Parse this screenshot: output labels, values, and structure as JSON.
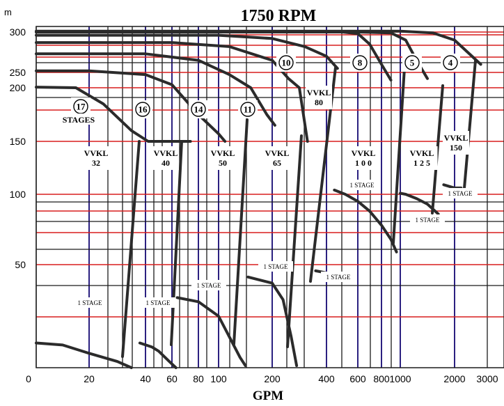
{
  "chart_data": {
    "type": "line",
    "title": "1750 RPM",
    "xlabel": "GPM",
    "ylabel": "m",
    "x_ticks": [
      {
        "v": 0,
        "label": "0"
      },
      {
        "v": 20,
        "label": "20"
      },
      {
        "v": 40,
        "label": "40"
      },
      {
        "v": 60,
        "label": "60"
      },
      {
        "v": 80,
        "label": "80"
      },
      {
        "v": 100,
        "label": "100"
      },
      {
        "v": 200,
        "label": "200"
      },
      {
        "v": 400,
        "label": "400"
      },
      {
        "v": 600,
        "label": "600"
      },
      {
        "v": 800,
        "label": "800"
      },
      {
        "v": 1000,
        "label": "1000"
      },
      {
        "v": 2000,
        "label": "2000"
      },
      {
        "v": 3000,
        "label": "3000"
      }
    ],
    "y_ticks": [
      {
        "v": 300,
        "label": "300"
      },
      {
        "v": 250,
        "label": "250"
      },
      {
        "v": 200,
        "label": "200"
      },
      {
        "v": 150,
        "label": "150"
      },
      {
        "v": 100,
        "label": "100"
      },
      {
        "v": 50,
        "label": "50"
      }
    ],
    "grid": true,
    "series": [
      {
        "points": [
          [
            0,
            202
          ],
          [
            15,
            200
          ],
          [
            25,
            185
          ],
          [
            35,
            160
          ],
          [
            42,
            150
          ],
          [
            60,
            150
          ],
          [
            74,
            150
          ]
        ]
      },
      {
        "points": [
          [
            0,
            252
          ],
          [
            20,
            252
          ],
          [
            40,
            243
          ],
          [
            60,
            210
          ],
          [
            80,
            175
          ],
          [
            100,
            157
          ],
          [
            112,
            150
          ]
        ]
      },
      {
        "points": [
          [
            0,
            273
          ],
          [
            40,
            273
          ],
          [
            80,
            265
          ],
          [
            120,
            243
          ],
          [
            160,
            200
          ],
          [
            190,
            175
          ],
          [
            210,
            165
          ]
        ]
      },
      {
        "points": [
          [
            0,
            287
          ],
          [
            60,
            287
          ],
          [
            120,
            282
          ],
          [
            200,
            265
          ],
          [
            260,
            230
          ],
          [
            300,
            200
          ],
          [
            330,
            150
          ]
        ]
      },
      {
        "points": [
          [
            0,
            296
          ],
          [
            100,
            296
          ],
          [
            200,
            292
          ],
          [
            320,
            282
          ],
          [
            400,
            270
          ],
          [
            470,
            255
          ]
        ]
      },
      {
        "points": [
          [
            0,
            300
          ],
          [
            300,
            300
          ],
          [
            500,
            300
          ],
          [
            600,
            298
          ],
          [
            700,
            285
          ],
          [
            800,
            260
          ],
          [
            900,
            225
          ]
        ]
      },
      {
        "points": [
          [
            0,
            300
          ],
          [
            600,
            300
          ],
          [
            900,
            299
          ],
          [
            1100,
            290
          ],
          [
            1300,
            265
          ],
          [
            1500,
            230
          ]
        ]
      },
      {
        "points": [
          [
            0,
            301
          ],
          [
            1000,
            301
          ],
          [
            1600,
            299
          ],
          [
            2000,
            290
          ],
          [
            2400,
            275
          ],
          [
            2800,
            260
          ]
        ]
      },
      {
        "points": [
          [
            0,
            12
          ],
          [
            10,
            11
          ],
          [
            20,
            7
          ],
          [
            30,
            3
          ],
          [
            35,
            0
          ]
        ]
      },
      {
        "points": [
          [
            38,
            12
          ],
          [
            45,
            10
          ],
          [
            50,
            8
          ],
          [
            58,
            3
          ],
          [
            63,
            0
          ]
        ]
      },
      {
        "points": [
          [
            64,
            34
          ],
          [
            80,
            32
          ],
          [
            100,
            25
          ],
          [
            120,
            15
          ],
          [
            140,
            5
          ],
          [
            150,
            1
          ]
        ]
      },
      {
        "points": [
          [
            155,
            44
          ],
          [
            200,
            41
          ],
          [
            240,
            33
          ],
          [
            270,
            15
          ],
          [
            290,
            1
          ]
        ]
      },
      {
        "points": [
          [
            360,
            47
          ],
          [
            400,
            46
          ],
          [
            440,
            45
          ]
        ]
      },
      {
        "points": [
          [
            450,
            104
          ],
          [
            520,
            100
          ],
          [
            600,
            95
          ],
          [
            700,
            88
          ],
          [
            800,
            78
          ],
          [
            900,
            68
          ],
          [
            960,
            59
          ]
        ]
      },
      {
        "points": [
          [
            1000,
            101
          ],
          [
            1100,
            100
          ],
          [
            1300,
            97
          ],
          [
            1500,
            93
          ],
          [
            1700,
            86
          ]
        ]
      },
      {
        "points": [
          [
            1800,
            109
          ],
          [
            2000,
            106
          ],
          [
            2200,
            106
          ]
        ]
      }
    ],
    "labels": {
      "pump_models": [
        "VVKL\n32",
        "VVKL\n40",
        "VVKL\n50",
        "VVKL\n65",
        "VVKL\n80",
        "VVKL\n1 0 0",
        "VVKL\n1 2 5",
        "VVKL\n150"
      ],
      "stages": [
        "17",
        "16",
        "14",
        "11",
        "10",
        "8",
        "5",
        "4"
      ],
      "stages_text": "STAGES",
      "one_stage": "1 STAGE"
    }
  }
}
